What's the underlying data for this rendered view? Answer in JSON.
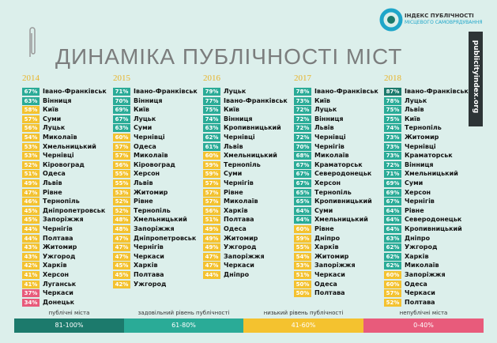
{
  "header": {
    "title": "ДИНАМІКА ПУБЛІЧНОСТІ МІСТ",
    "logo_line1": "ІНДЕКС ПУБЛІЧНОСТІ",
    "logo_line2": "МІСЦЕВОГО САМОВРЯДУВАННЯ",
    "site": "publicityindex.org"
  },
  "columns": [
    {
      "year": "2014",
      "rows": [
        [
          "67%",
          "Івано-Франківськ"
        ],
        [
          "63%",
          "Вінниця"
        ],
        [
          "58%",
          "Київ"
        ],
        [
          "57%",
          "Суми"
        ],
        [
          "56%",
          "Луцьк"
        ],
        [
          "54%",
          "Миколаїв"
        ],
        [
          "53%",
          "Хмельницький"
        ],
        [
          "53%",
          "Чернівці"
        ],
        [
          "52%",
          "Кіровоград"
        ],
        [
          "51%",
          "Одеса"
        ],
        [
          "49%",
          "Львів"
        ],
        [
          "47%",
          "Рівне"
        ],
        [
          "46%",
          "Тернопіль"
        ],
        [
          "45%",
          "Дніпропетровськ"
        ],
        [
          "45%",
          "Запоріжжя"
        ],
        [
          "44%",
          "Чернігів"
        ],
        [
          "44%",
          "Полтава"
        ],
        [
          "43%",
          "Житомир"
        ],
        [
          "43%",
          "Ужгород"
        ],
        [
          "42%",
          "Харків"
        ],
        [
          "41%",
          "Херсон"
        ],
        [
          "41%",
          "Луганськ"
        ],
        [
          "37%",
          "Черкаси"
        ],
        [
          "34%",
          "Донецьк"
        ]
      ]
    },
    {
      "year": "2015",
      "rows": [
        [
          "71%",
          "Івано-Франківськ"
        ],
        [
          "70%",
          "Вінниця"
        ],
        [
          "69%",
          "Київ"
        ],
        [
          "67%",
          "Луцьк"
        ],
        [
          "63%",
          "Суми"
        ],
        [
          "60%",
          "Чернівці"
        ],
        [
          "57%",
          "Одеса"
        ],
        [
          "57%",
          "Миколаїв"
        ],
        [
          "56%",
          "Кіровоград"
        ],
        [
          "55%",
          "Херсон"
        ],
        [
          "55%",
          "Львів"
        ],
        [
          "53%",
          "Житомир"
        ],
        [
          "52%",
          "Рівне"
        ],
        [
          "52%",
          "Тернопіль"
        ],
        [
          "48%",
          "Хмельницький"
        ],
        [
          "48%",
          "Запоріжжя"
        ],
        [
          "47%",
          "Дніпропетровськ"
        ],
        [
          "47%",
          "Чернігів"
        ],
        [
          "47%",
          "Черкаси"
        ],
        [
          "45%",
          "Харків"
        ],
        [
          "45%",
          "Полтава"
        ],
        [
          "42%",
          "Ужгород"
        ]
      ]
    },
    {
      "year": "2016",
      "rows": [
        [
          "79%",
          "Луцьк"
        ],
        [
          "77%",
          "Івано-Франківськ"
        ],
        [
          "75%",
          "Київ"
        ],
        [
          "74%",
          "Вінниця"
        ],
        [
          "63%",
          "Кропивницький"
        ],
        [
          "62%",
          "Чернівці"
        ],
        [
          "61%",
          "Львів"
        ],
        [
          "60%",
          "Хмельницький"
        ],
        [
          "59%",
          "Тернопіль"
        ],
        [
          "59%",
          "Суми"
        ],
        [
          "57%",
          "Чернігів"
        ],
        [
          "57%",
          "Рівне"
        ],
        [
          "57%",
          "Миколаїв"
        ],
        [
          "56%",
          "Харків"
        ],
        [
          "51%",
          "Полтава"
        ],
        [
          "49%",
          "Одеса"
        ],
        [
          "49%",
          "Житомир"
        ],
        [
          "49%",
          "Ужгород"
        ],
        [
          "47%",
          "Запоріжжя"
        ],
        [
          "47%",
          "Черкаси"
        ],
        [
          "44%",
          "Дніпро"
        ]
      ]
    },
    {
      "year": "2017",
      "rows": [
        [
          "78%",
          "Івано-Франківськ"
        ],
        [
          "73%",
          "Київ"
        ],
        [
          "72%",
          "Луцьк"
        ],
        [
          "72%",
          "Вінниця"
        ],
        [
          "72%",
          "Львів"
        ],
        [
          "72%",
          "Чернівці"
        ],
        [
          "70%",
          "Чернігів"
        ],
        [
          "68%",
          "Миколаїв"
        ],
        [
          "67%",
          "Краматорськ"
        ],
        [
          "67%",
          "Северодонецьк"
        ],
        [
          "67%",
          "Херсон"
        ],
        [
          "65%",
          "Тернопіль"
        ],
        [
          "65%",
          "Кропивницький"
        ],
        [
          "64%",
          "Суми"
        ],
        [
          "64%",
          "Хмельницький"
        ],
        [
          "60%",
          "Рівне"
        ],
        [
          "59%",
          "Дніпро"
        ],
        [
          "55%",
          "Харків"
        ],
        [
          "54%",
          "Житомир"
        ],
        [
          "53%",
          "Запоріжжя"
        ],
        [
          "51%",
          "Черкаси"
        ],
        [
          "50%",
          "Одеса"
        ],
        [
          "50%",
          "Полтава"
        ]
      ]
    },
    {
      "year": "2018",
      "rows": [
        [
          "87%",
          "Івано-Франківськ"
        ],
        [
          "78%",
          "Луцьк"
        ],
        [
          "75%",
          "Львів"
        ],
        [
          "75%",
          "Київ"
        ],
        [
          "74%",
          "Тернопіль"
        ],
        [
          "73%",
          "Житомир"
        ],
        [
          "73%",
          "Чернівці"
        ],
        [
          "73%",
          "Краматорськ"
        ],
        [
          "72%",
          "Вінниця"
        ],
        [
          "71%",
          "Хмельницький"
        ],
        [
          "69%",
          "Суми"
        ],
        [
          "69%",
          "Херсон"
        ],
        [
          "67%",
          "Чернігів"
        ],
        [
          "64%",
          "Рівне"
        ],
        [
          "64%",
          "Северодонецьк"
        ],
        [
          "64%",
          "Кропивницький"
        ],
        [
          "63%",
          "Дніпро"
        ],
        [
          "62%",
          "Ужгород"
        ],
        [
          "62%",
          "Харків"
        ],
        [
          "62%",
          "Миколаїв"
        ],
        [
          "60%",
          "Запоріжжя"
        ],
        [
          "60%",
          "Одеса"
        ],
        [
          "57%",
          "Черкаси"
        ],
        [
          "52%",
          "Полтава"
        ]
      ]
    }
  ],
  "legend": [
    {
      "label": "публічні міста",
      "range": "81-100%",
      "color": "#1c7a6c"
    },
    {
      "label": "задовільний рівень публічності",
      "range": "61-80%",
      "color": "#2aab97"
    },
    {
      "label": "низький рівень публічності",
      "range": "41-60%",
      "color": "#f4c22f"
    },
    {
      "label": "непублічні міста",
      "range": "0-40%",
      "color": "#e85b7b"
    }
  ]
}
